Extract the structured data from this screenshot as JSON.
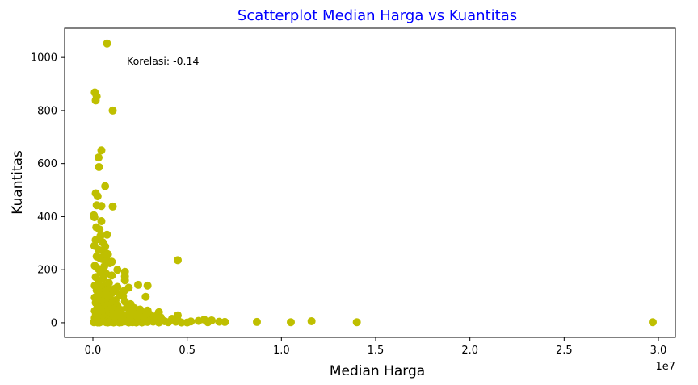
{
  "chart_data": {
    "type": "scatter",
    "title": "Scatterplot Median Harga vs Kuantitas",
    "title_color": "#0000ff",
    "xlabel": "Median Harga",
    "ylabel": "Kuantitas",
    "x_offset_label": "1e7",
    "x_scale_factor": 10000000,
    "point_color": "#bfbf00",
    "grid": false,
    "annotation": {
      "text": "Korelasi: -0.14",
      "x": 1800000,
      "y": 985
    },
    "xlim": [
      -1500000,
      30900000
    ],
    "ylim": [
      -55,
      1110
    ],
    "xticks": [
      0,
      5000000,
      10000000,
      15000000,
      20000000,
      25000000,
      30000000
    ],
    "xtick_labels": [
      "0.0",
      "0.5",
      "1.0",
      "1.5",
      "2.0",
      "2.5",
      "3.0"
    ],
    "yticks": [
      0,
      200,
      400,
      600,
      800,
      1000
    ],
    "ytick_labels": [
      "0",
      "200",
      "400",
      "600",
      "800",
      "1000"
    ],
    "points": [
      [
        750000,
        1053
      ],
      [
        100000,
        868
      ],
      [
        200000,
        853
      ],
      [
        150000,
        838
      ],
      [
        1050000,
        800
      ],
      [
        450000,
        650
      ],
      [
        300000,
        623
      ],
      [
        320000,
        587
      ],
      [
        650000,
        515
      ],
      [
        150000,
        488
      ],
      [
        250000,
        477
      ],
      [
        1050000,
        438
      ],
      [
        200000,
        443
      ],
      [
        450000,
        440
      ],
      [
        50000,
        405
      ],
      [
        80000,
        398
      ],
      [
        450000,
        383
      ],
      [
        180000,
        360
      ],
      [
        350000,
        352
      ],
      [
        750000,
        332
      ],
      [
        400000,
        327
      ],
      [
        150000,
        312
      ],
      [
        520000,
        303
      ],
      [
        80000,
        290
      ],
      [
        650000,
        288
      ],
      [
        300000,
        275
      ],
      [
        600000,
        266
      ],
      [
        700000,
        262
      ],
      [
        800000,
        258
      ],
      [
        200000,
        250
      ],
      [
        350000,
        245
      ],
      [
        500000,
        240
      ],
      [
        750000,
        235
      ],
      [
        1000000,
        230
      ],
      [
        4500000,
        236
      ],
      [
        900000,
        225
      ],
      [
        100000,
        215
      ],
      [
        600000,
        212
      ],
      [
        250000,
        205
      ],
      [
        1300000,
        200
      ],
      [
        1700000,
        192
      ],
      [
        400000,
        190
      ],
      [
        700000,
        185
      ],
      [
        1000000,
        178
      ],
      [
        1700000,
        175
      ],
      [
        150000,
        172
      ],
      [
        550000,
        168
      ],
      [
        1700000,
        160
      ],
      [
        300000,
        155
      ],
      [
        850000,
        150
      ],
      [
        2400000,
        143
      ],
      [
        2900000,
        140
      ],
      [
        100000,
        140
      ],
      [
        600000,
        138
      ],
      [
        1300000,
        135
      ],
      [
        1900000,
        132
      ],
      [
        450000,
        130
      ],
      [
        1150000,
        128
      ],
      [
        800000,
        125
      ],
      [
        200000,
        122
      ],
      [
        1650000,
        120
      ],
      [
        500000,
        115
      ],
      [
        1000000,
        112
      ],
      [
        300000,
        110
      ],
      [
        700000,
        108
      ],
      [
        1400000,
        105
      ],
      [
        1600000,
        100
      ],
      [
        2800000,
        98
      ],
      [
        100000,
        95
      ],
      [
        900000,
        92
      ],
      [
        500000,
        88
      ],
      [
        1200000,
        85
      ],
      [
        350000,
        82
      ],
      [
        1700000,
        80
      ],
      [
        700000,
        78
      ],
      [
        150000,
        75
      ],
      [
        1000000,
        72
      ],
      [
        2000000,
        70
      ],
      [
        450000,
        68
      ],
      [
        1300000,
        65
      ],
      [
        800000,
        62
      ],
      [
        250000,
        60
      ],
      [
        1800000,
        58
      ],
      [
        2200000,
        55
      ],
      [
        600000,
        55
      ],
      [
        1100000,
        52
      ],
      [
        2500000,
        50
      ],
      [
        400000,
        50
      ],
      [
        1500000,
        48
      ],
      [
        2900000,
        46
      ],
      [
        100000,
        45
      ],
      [
        900000,
        44
      ],
      [
        2100000,
        42
      ],
      [
        3500000,
        40
      ],
      [
        700000,
        40
      ],
      [
        1300000,
        38
      ],
      [
        2600000,
        36
      ],
      [
        300000,
        35
      ],
      [
        1900000,
        34
      ],
      [
        3000000,
        32
      ],
      [
        500000,
        32
      ],
      [
        1000000,
        30
      ],
      [
        2300000,
        30
      ],
      [
        4500000,
        28
      ],
      [
        150000,
        28
      ],
      [
        1600000,
        27
      ],
      [
        2800000,
        26
      ],
      [
        800000,
        25
      ],
      [
        3300000,
        24
      ],
      [
        1200000,
        23
      ],
      [
        400000,
        22
      ],
      [
        2000000,
        21
      ],
      [
        3600000,
        20
      ],
      [
        600000,
        20
      ],
      [
        1400000,
        19
      ],
      [
        2500000,
        18
      ],
      [
        100000,
        18
      ],
      [
        900000,
        17
      ],
      [
        3000000,
        16
      ],
      [
        4200000,
        15
      ],
      [
        1800000,
        15
      ],
      [
        300000,
        14
      ],
      [
        700000,
        14
      ],
      [
        2200000,
        13
      ],
      [
        1100000,
        12
      ],
      [
        3400000,
        12
      ],
      [
        500000,
        11
      ],
      [
        1500000,
        11
      ],
      [
        2700000,
        10
      ],
      [
        4500000,
        10
      ],
      [
        200000,
        10
      ],
      [
        5900000,
        12
      ],
      [
        6300000,
        9
      ],
      [
        1000000,
        9
      ],
      [
        2000000,
        8
      ],
      [
        3100000,
        8
      ],
      [
        5600000,
        7
      ],
      [
        800000,
        7
      ],
      [
        1300000,
        7
      ],
      [
        3800000,
        6
      ],
      [
        11600000,
        6
      ],
      [
        5200000,
        5
      ],
      [
        2400000,
        5
      ],
      [
        600000,
        5
      ],
      [
        1700000,
        5
      ],
      [
        100000,
        4
      ],
      [
        4400000,
        4
      ],
      [
        6700000,
        4
      ],
      [
        3200000,
        4
      ],
      [
        900000,
        3
      ],
      [
        7000000,
        3
      ],
      [
        400000,
        3
      ],
      [
        8700000,
        3
      ],
      [
        1200000,
        3
      ],
      [
        2900000,
        3
      ],
      [
        10500000,
        2
      ],
      [
        14000000,
        2
      ],
      [
        29700000,
        2
      ],
      [
        4000000,
        2
      ],
      [
        6100000,
        2
      ],
      [
        50000,
        2
      ],
      [
        700000,
        2
      ],
      [
        1500000,
        2
      ],
      [
        2100000,
        2
      ],
      [
        3500000,
        1
      ],
      [
        250000,
        1
      ],
      [
        5000000,
        1
      ],
      [
        1900000,
        1
      ],
      [
        2600000,
        1
      ],
      [
        800000,
        1
      ],
      [
        1100000,
        1
      ],
      [
        4700000,
        1
      ],
      [
        350000,
        1
      ],
      [
        2300000,
        1
      ],
      [
        1400000,
        1
      ]
    ]
  }
}
